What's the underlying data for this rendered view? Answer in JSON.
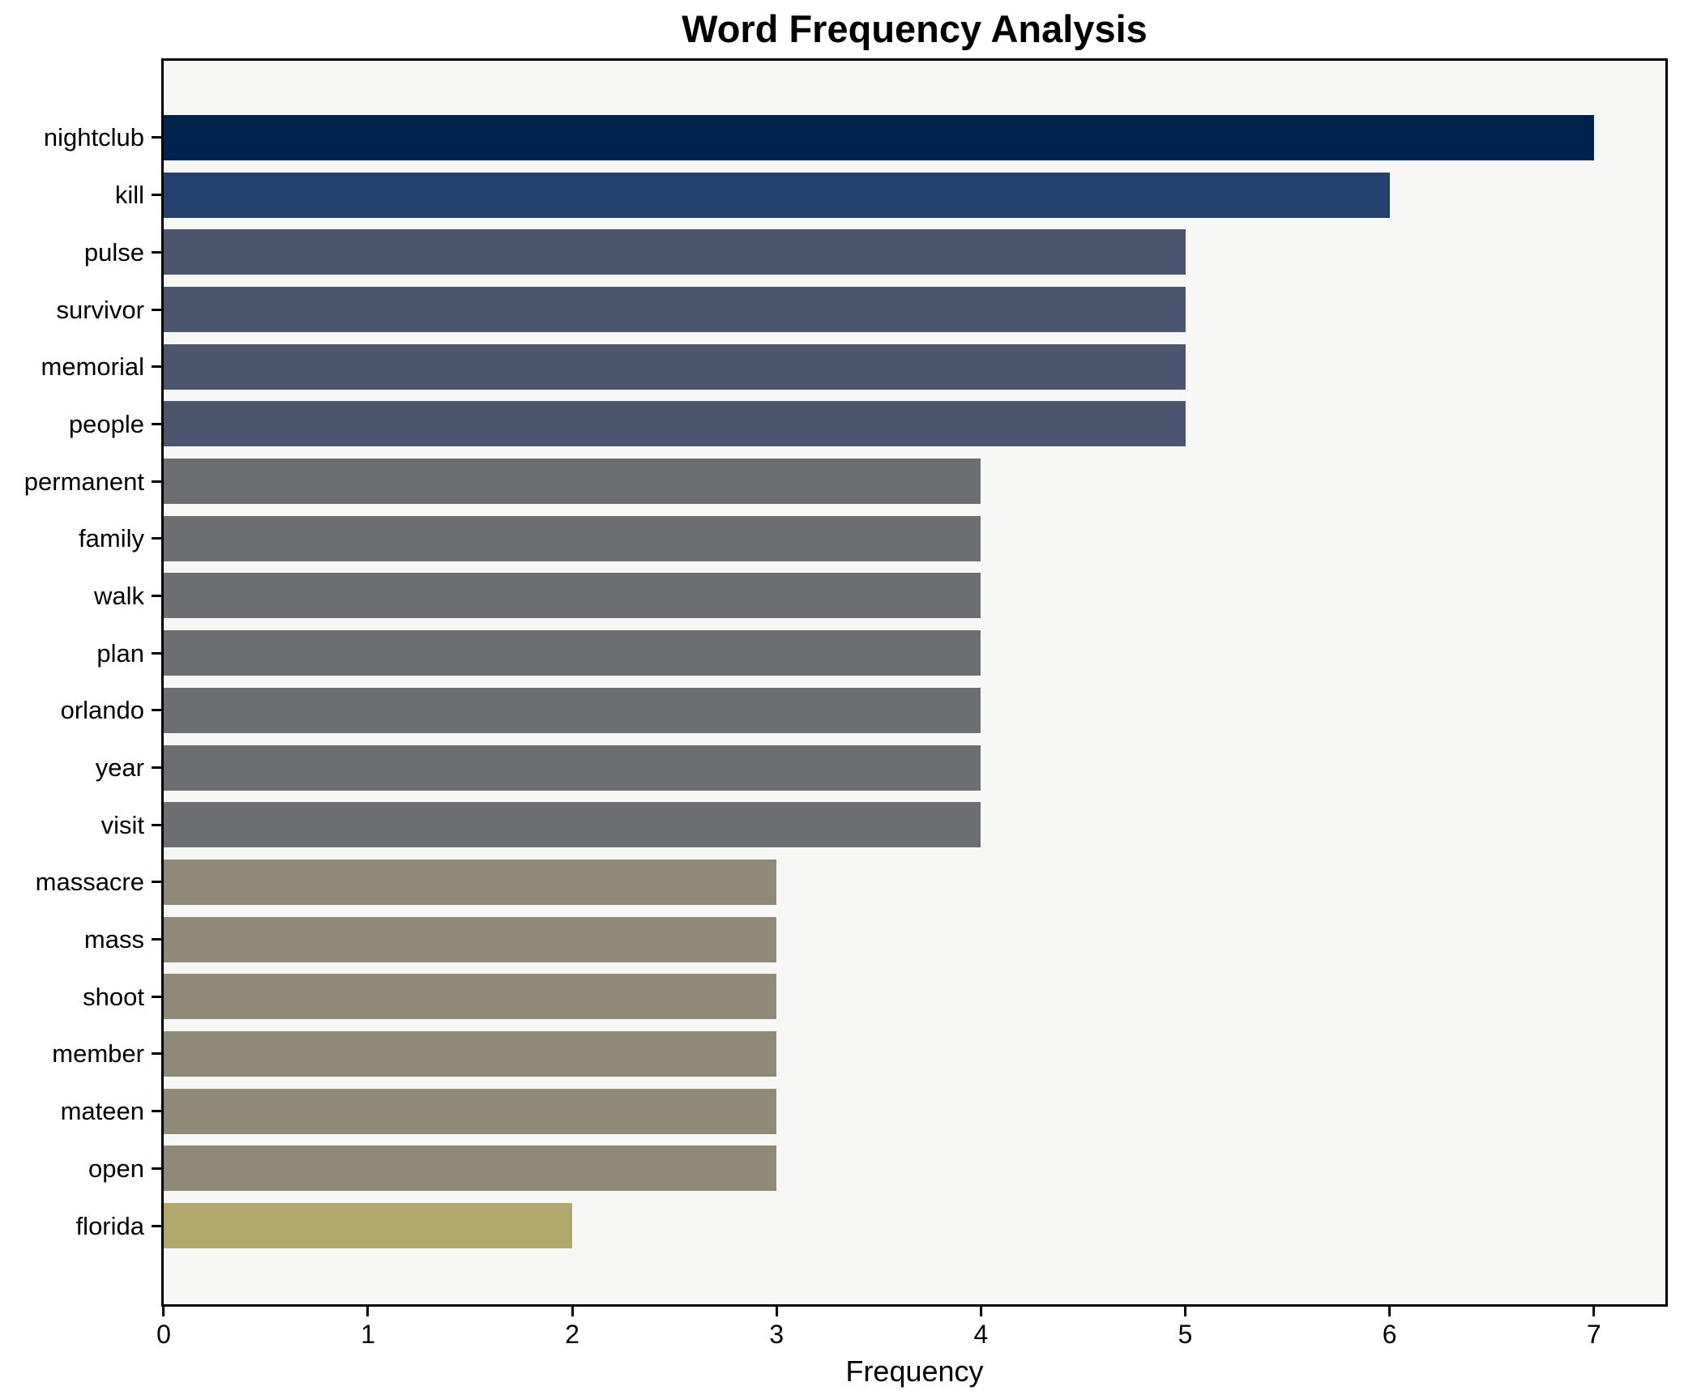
{
  "chart_data": {
    "type": "bar",
    "orientation": "horizontal",
    "title": "Word Frequency Analysis",
    "xlabel": "Frequency",
    "ylabel": "",
    "categories": [
      "nightclub",
      "kill",
      "pulse",
      "survivor",
      "memorial",
      "people",
      "permanent",
      "family",
      "walk",
      "plan",
      "orlando",
      "year",
      "visit",
      "massacre",
      "mass",
      "shoot",
      "member",
      "mateen",
      "open",
      "florida"
    ],
    "values": [
      7,
      6,
      5,
      5,
      5,
      5,
      4,
      4,
      4,
      4,
      4,
      4,
      4,
      3,
      3,
      3,
      3,
      3,
      3,
      2
    ],
    "bar_colors": [
      "#00234d",
      "#24406e",
      "#4c556e",
      "#4c556e",
      "#4c556e",
      "#4c556e",
      "#6c6e72",
      "#6c6e72",
      "#6c6e72",
      "#6c6e72",
      "#6c6e72",
      "#6c6e72",
      "#6c6e72",
      "#8f8977",
      "#8f8977",
      "#8f8977",
      "#8f8977",
      "#8f8977",
      "#8f8977",
      "#b1a66b"
    ],
    "xticks": [
      "0",
      "1",
      "2",
      "3",
      "4",
      "5",
      "6",
      "7"
    ],
    "xlim": [
      0,
      7.35
    ],
    "grid": false,
    "legend": false,
    "plot_background": "#f7f7f5",
    "figure_background": "#ffffff",
    "spine_color": "#000000",
    "text_color": "#000000"
  }
}
